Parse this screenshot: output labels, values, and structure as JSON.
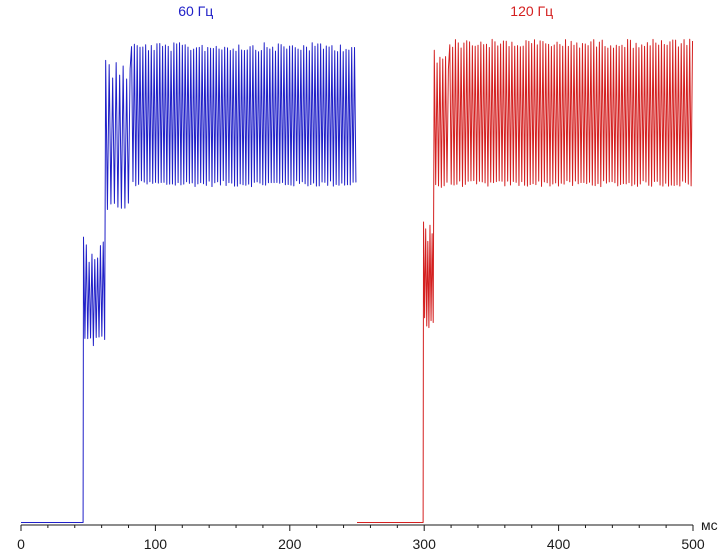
{
  "chart_data": {
    "type": "line",
    "title": "",
    "xlabel": "",
    "ylabel": "",
    "x_unit": "мс",
    "xlim": [
      0,
      500
    ],
    "ylim": [
      0,
      1
    ],
    "xticks": [
      0,
      100,
      200,
      300,
      400,
      500
    ],
    "grid": false,
    "series": [
      {
        "name": "60 Гц",
        "color": "#2020c8",
        "x_start": 0,
        "x_end": 250,
        "baseline": 0.005,
        "rise_at": 46.5,
        "step1": {
          "x_end": 62,
          "max": 0.57,
          "min": 0.35,
          "period": 2.1
        },
        "rise2_at": 63,
        "transition": {
          "x_end": 80,
          "max": 0.92,
          "min": 0.62,
          "period": 2.6
        },
        "steady": {
          "max": 0.955,
          "min": 0.67,
          "period": 2.1
        }
      },
      {
        "name": "120 Гц",
        "color": "#d42020",
        "x_start": 250,
        "x_end": 500,
        "baseline": 0.005,
        "rise_at": 299.5,
        "step1": {
          "x_end": 306.5,
          "max": 0.6,
          "min": 0.39,
          "period": 1.6
        },
        "rise2_at": 307.5,
        "transition": {
          "x_end": 318,
          "max": 0.94,
          "min": 0.66,
          "period": 2.1
        },
        "steady": {
          "max": 0.962,
          "min": 0.67,
          "period": 2.1
        }
      }
    ]
  }
}
